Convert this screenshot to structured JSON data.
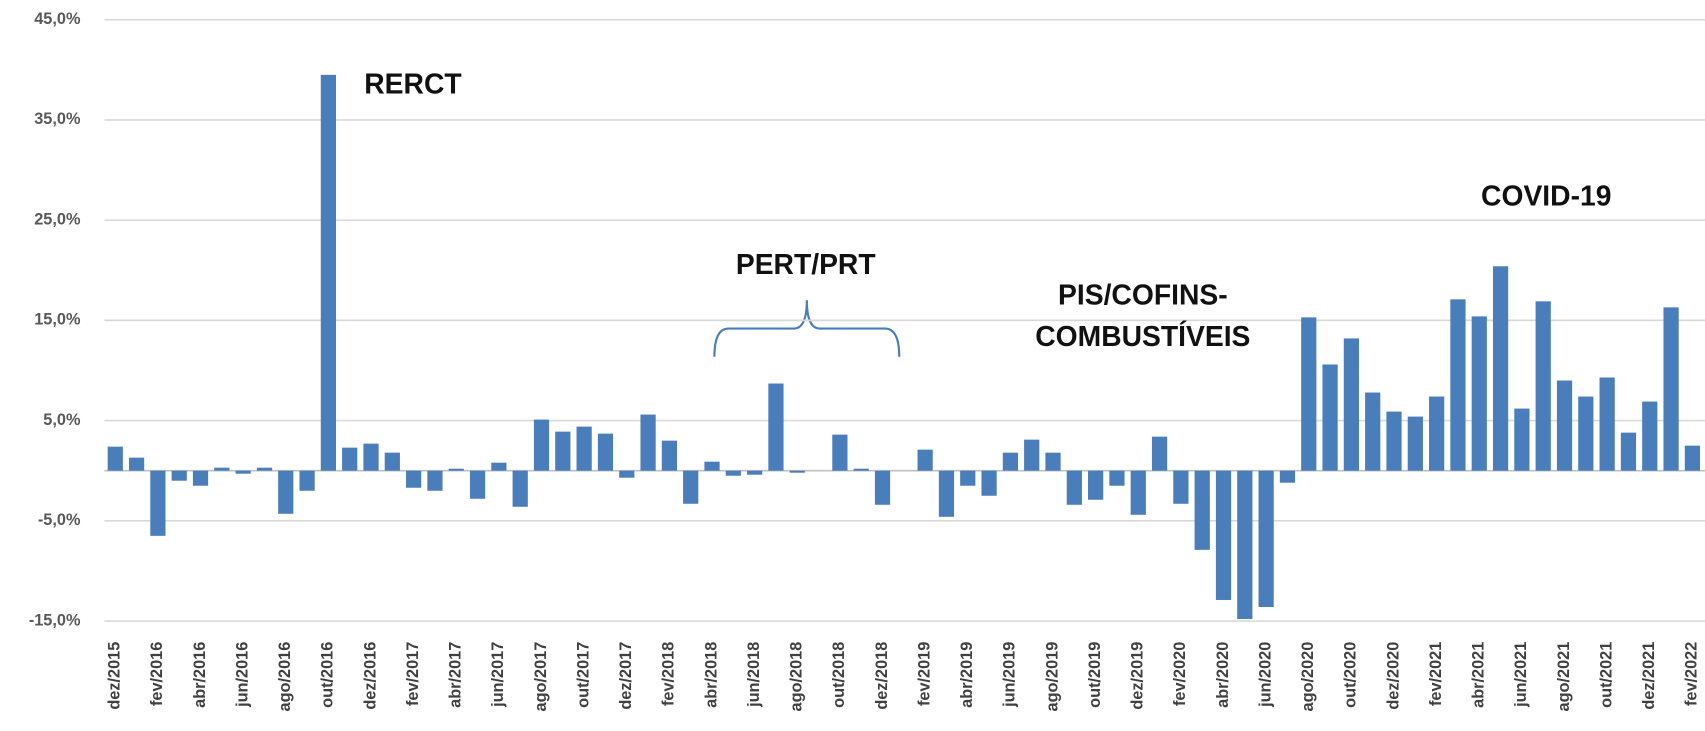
{
  "chart_data": {
    "type": "bar",
    "color": "#4a7ebb",
    "grid": true,
    "ylim": [
      -15,
      45
    ],
    "yticks": [
      {
        "value": 45,
        "label": "45,0%"
      },
      {
        "value": 35,
        "label": "35,0%"
      },
      {
        "value": 25,
        "label": "25,0%"
      },
      {
        "value": 15,
        "label": "15,0%"
      },
      {
        "value": 5,
        "label": "5,0%"
      },
      {
        "value": -5,
        "label": "-5,0%"
      },
      {
        "value": -15,
        "label": "-15,0%"
      }
    ],
    "categories": [
      "dez/2015",
      null,
      "fev/2016",
      null,
      "abr/2016",
      null,
      "jun/2016",
      null,
      "ago/2016",
      null,
      "out/2016",
      null,
      "dez/2016",
      null,
      "fev/2017",
      null,
      "abr/2017",
      null,
      "jun/2017",
      null,
      "ago/2017",
      null,
      "out/2017",
      null,
      "dez/2017",
      null,
      "fev/2018",
      null,
      "abr/2018",
      null,
      "jun/2018",
      null,
      "ago/2018",
      null,
      "out/2018",
      null,
      "dez/2018",
      null,
      "fev/2019",
      null,
      "abr/2019",
      null,
      "jun/2019",
      null,
      "ago/2019",
      null,
      "out/2019",
      null,
      "dez/2019",
      null,
      "fev/2020",
      null,
      "abr/2020",
      null,
      "jun/2020",
      null,
      "ago/2020",
      null,
      "out/2020",
      null,
      "dez/2020",
      null,
      "fev/2021",
      null,
      "abr/2021",
      null,
      "jun/2021",
      null,
      "ago/2021",
      null,
      "out/2021",
      null,
      "dez/2021",
      null,
      "fev/2022"
    ],
    "values": [
      2.4,
      1.3,
      -6.5,
      -1.0,
      -1.5,
      0.3,
      -0.3,
      0.3,
      -4.3,
      -2.0,
      39.5,
      2.3,
      2.7,
      1.8,
      -1.7,
      -2.0,
      0.2,
      -2.8,
      0.8,
      -3.6,
      5.1,
      3.9,
      4.4,
      3.7,
      -0.7,
      5.6,
      3.0,
      -3.3,
      0.9,
      -0.5,
      -0.4,
      8.7,
      -0.2,
      0.0,
      3.6,
      0.2,
      -3.4,
      0.0,
      2.1,
      -4.6,
      -1.5,
      -2.5,
      1.8,
      3.1,
      1.8,
      -3.4,
      -2.9,
      -1.5,
      -4.4,
      3.4,
      -3.3,
      -7.9,
      -12.9,
      -14.8,
      -13.6,
      -1.2,
      15.3,
      10.6,
      13.2,
      7.8,
      5.9,
      5.4,
      7.4,
      17.1,
      15.4,
      20.4,
      6.2,
      16.9,
      9.0,
      7.4,
      9.3,
      3.8,
      6.9,
      16.3,
      2.5
    ],
    "annotations": [
      {
        "text": "RERCT"
      },
      {
        "text": "PERT/PRT"
      },
      {
        "lines": [
          "PIS/COFINS-",
          "COMBUSTÍVEIS"
        ]
      },
      {
        "text": "COVID-19"
      }
    ]
  }
}
